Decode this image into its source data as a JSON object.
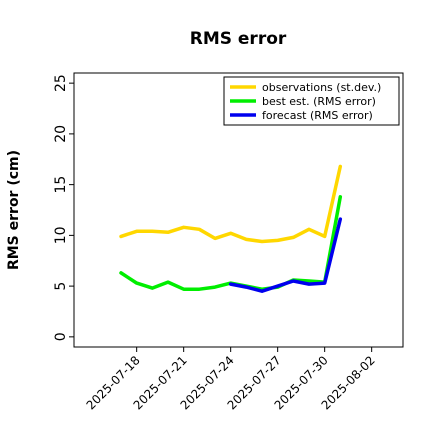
{
  "chart_data": {
    "type": "line",
    "title": "RMS error",
    "xlabel": "",
    "ylabel": "RMS error (cm)",
    "ylim": [
      -1,
      26
    ],
    "yticks": [
      0,
      5,
      10,
      15,
      20,
      25
    ],
    "xlim": [
      "2025-07-14",
      "2025-08-04"
    ],
    "xticks": [
      "2025-07-18",
      "2025-07-21",
      "2025-07-24",
      "2025-07-27",
      "2025-07-30",
      "2025-08-02"
    ],
    "highlighted_xtick": "2025-07-24",
    "highlight_color": "#228B22",
    "grid": false,
    "legend_position": "top-right",
    "series": [
      {
        "name": "observations (st.dev.)",
        "color": "#FFD700",
        "x": [
          "2025-07-17",
          "2025-07-18",
          "2025-07-19",
          "2025-07-20",
          "2025-07-21",
          "2025-07-22",
          "2025-07-23",
          "2025-07-24",
          "2025-07-25",
          "2025-07-26",
          "2025-07-27",
          "2025-07-28",
          "2025-07-29",
          "2025-07-30",
          "2025-07-31"
        ],
        "y": [
          9.9,
          10.4,
          10.4,
          10.3,
          10.8,
          10.6,
          9.7,
          10.2,
          9.6,
          9.4,
          9.5,
          9.8,
          10.6,
          9.9,
          16.8
        ]
      },
      {
        "name": "best est. (RMS error)",
        "color": "#00EE00",
        "x": [
          "2025-07-17",
          "2025-07-18",
          "2025-07-19",
          "2025-07-20",
          "2025-07-21",
          "2025-07-22",
          "2025-07-23",
          "2025-07-24",
          "2025-07-25",
          "2025-07-26",
          "2025-07-27",
          "2025-07-28",
          "2025-07-29",
          "2025-07-30",
          "2025-07-31"
        ],
        "y": [
          6.3,
          5.3,
          4.8,
          5.4,
          4.7,
          4.7,
          4.9,
          5.3,
          5.0,
          4.7,
          4.9,
          5.6,
          5.5,
          5.4,
          13.8
        ]
      },
      {
        "name": "forecast (RMS error)",
        "color": "#0000EE",
        "x": [
          "2025-07-24",
          "2025-07-25",
          "2025-07-26",
          "2025-07-27",
          "2025-07-28",
          "2025-07-29",
          "2025-07-30",
          "2025-07-31"
        ],
        "y": [
          5.2,
          4.9,
          4.5,
          5.0,
          5.5,
          5.2,
          5.3,
          11.6
        ]
      }
    ]
  }
}
